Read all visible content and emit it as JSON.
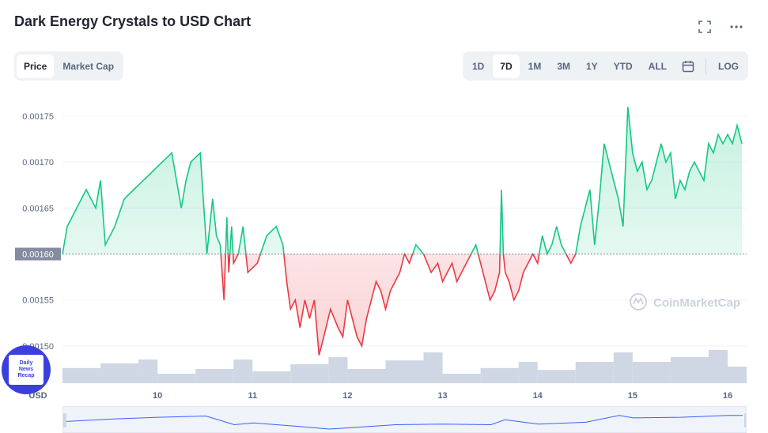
{
  "title": "Dark Energy Crystals to USD Chart",
  "icons": {
    "expand": "fullscreen-icon",
    "more": "more-horizontal-icon",
    "calendar": "calendar-icon"
  },
  "tabs_left": [
    {
      "label": "Price",
      "active": true
    },
    {
      "label": "Market Cap",
      "active": false
    }
  ],
  "ranges": [
    {
      "label": "1D",
      "active": false
    },
    {
      "label": "7D",
      "active": true
    },
    {
      "label": "1M",
      "active": false
    },
    {
      "label": "3M",
      "active": false
    },
    {
      "label": "1Y",
      "active": false
    },
    {
      "label": "YTD",
      "active": false
    },
    {
      "label": "ALL",
      "active": false
    }
  ],
  "log_label": "LOG",
  "watermark": "CoinMarketCap",
  "badge_text": [
    "Daily",
    "News",
    "Recap"
  ],
  "colors": {
    "up": "#16c784",
    "down": "#ea3943",
    "volume": "#cfd6e4",
    "nav_line": "#3861fb",
    "baseline_badge": "#858ca2"
  },
  "chart_data": {
    "type": "line",
    "title": "Dark Energy Crystals to USD Chart",
    "currency_label": "USD",
    "ylim": [
      0.001475,
      0.00178
    ],
    "yticks": [
      "0.00150",
      "0.00155",
      "0.00160",
      "0.00165",
      "0.00170",
      "0.00175"
    ],
    "baseline": {
      "value": 0.0016,
      "label": "0.00160"
    },
    "x_range": [
      9.0,
      16.2
    ],
    "xticks": [
      {
        "value": 10,
        "label": "10"
      },
      {
        "value": 11,
        "label": "11"
      },
      {
        "value": 12,
        "label": "12"
      },
      {
        "value": 13,
        "label": "13"
      },
      {
        "value": 14,
        "label": "14"
      },
      {
        "value": 15,
        "label": "15"
      },
      {
        "value": 16,
        "label": "16"
      }
    ],
    "series": [
      {
        "x": [
          9.0,
          9.05,
          9.15,
          9.25,
          9.35,
          9.4,
          9.45,
          9.5,
          9.55,
          9.65,
          9.75,
          9.85,
          9.95,
          10.05,
          10.15,
          10.25,
          10.3,
          10.35,
          10.45,
          10.52,
          10.58,
          10.62,
          10.66,
          10.7,
          10.73,
          10.75,
          10.78,
          10.8,
          10.85,
          10.9,
          10.95,
          11.05,
          11.15,
          11.25,
          11.32,
          11.36,
          11.4,
          11.45,
          11.5,
          11.55,
          11.6,
          11.65,
          11.7,
          11.75,
          11.82,
          11.9,
          11.95,
          12.0,
          12.05,
          12.1,
          12.15,
          12.2,
          12.25,
          12.3,
          12.35,
          12.4,
          12.45,
          12.5,
          12.55,
          12.6,
          12.65,
          12.72,
          12.8,
          12.88,
          12.95,
          13.0,
          13.05,
          13.1,
          13.15,
          13.2,
          13.25,
          13.3,
          13.35,
          13.4,
          13.45,
          13.5,
          13.55,
          13.6,
          13.62,
          13.64,
          13.66,
          13.7,
          13.75,
          13.8,
          13.85,
          13.9,
          13.95,
          14.0,
          14.05,
          14.1,
          14.15,
          14.2,
          14.25,
          14.3,
          14.35,
          14.4,
          14.45,
          14.5,
          14.55,
          14.6,
          14.65,
          14.7,
          14.75,
          14.8,
          14.85,
          14.9,
          14.95,
          15.0,
          15.05,
          15.1,
          15.15,
          15.2,
          15.25,
          15.3,
          15.35,
          15.4,
          15.45,
          15.5,
          15.55,
          15.6,
          15.65,
          15.7,
          15.75,
          15.8,
          15.85,
          15.9,
          15.95,
          16.0,
          16.05,
          16.1,
          16.15
        ],
        "y": [
          0.0016,
          0.00163,
          0.00165,
          0.00167,
          0.00165,
          0.00168,
          0.00161,
          0.00162,
          0.00163,
          0.00166,
          0.00167,
          0.00168,
          0.00169,
          0.0017,
          0.00171,
          0.00165,
          0.00168,
          0.0017,
          0.00171,
          0.0016,
          0.00166,
          0.00162,
          0.00161,
          0.00155,
          0.00164,
          0.00158,
          0.00163,
          0.00159,
          0.0016,
          0.00163,
          0.00158,
          0.00159,
          0.00162,
          0.00163,
          0.00161,
          0.00157,
          0.00154,
          0.00155,
          0.00152,
          0.00155,
          0.00153,
          0.00155,
          0.00149,
          0.00151,
          0.00154,
          0.00152,
          0.00151,
          0.00155,
          0.00153,
          0.00151,
          0.0015,
          0.00153,
          0.00155,
          0.00157,
          0.00156,
          0.00154,
          0.00156,
          0.00157,
          0.00158,
          0.0016,
          0.00159,
          0.00161,
          0.0016,
          0.00158,
          0.00159,
          0.00157,
          0.00158,
          0.00159,
          0.00157,
          0.00158,
          0.00159,
          0.0016,
          0.00161,
          0.00159,
          0.00157,
          0.00155,
          0.00156,
          0.00158,
          0.00167,
          0.0016,
          0.00158,
          0.00157,
          0.00155,
          0.00156,
          0.00158,
          0.00159,
          0.0016,
          0.00159,
          0.00162,
          0.0016,
          0.00161,
          0.00163,
          0.00161,
          0.0016,
          0.00159,
          0.0016,
          0.00163,
          0.00165,
          0.00167,
          0.00161,
          0.00166,
          0.00172,
          0.0017,
          0.00168,
          0.00166,
          0.00163,
          0.00176,
          0.00171,
          0.00169,
          0.0017,
          0.00167,
          0.00168,
          0.0017,
          0.00172,
          0.0017,
          0.00171,
          0.00166,
          0.00168,
          0.00167,
          0.00169,
          0.0017,
          0.00169,
          0.00168,
          0.00172,
          0.00171,
          0.00173,
          0.00172,
          0.00173,
          0.00172,
          0.00174,
          0.00172
        ]
      }
    ],
    "volume": {
      "x": [
        9.0,
        9.4,
        9.8,
        10.0,
        10.4,
        10.8,
        11.0,
        11.4,
        11.8,
        12.0,
        12.4,
        12.8,
        13.0,
        13.4,
        13.8,
        14.0,
        14.4,
        14.8,
        15.0,
        15.4,
        15.8,
        16.0
      ],
      "values": [
        0.32,
        0.42,
        0.5,
        0.2,
        0.3,
        0.5,
        0.25,
        0.4,
        0.55,
        0.3,
        0.48,
        0.65,
        0.2,
        0.32,
        0.45,
        0.28,
        0.45,
        0.65,
        0.45,
        0.55,
        0.7,
        0.35
      ]
    },
    "navigator": {
      "x": [
        9.0,
        9.5,
        10.0,
        10.5,
        10.8,
        11.0,
        11.5,
        11.8,
        12.0,
        12.5,
        13.0,
        13.5,
        13.65,
        14.0,
        14.5,
        14.85,
        15.0,
        15.5,
        16.0,
        16.15
      ],
      "y": [
        0.00162,
        0.00166,
        0.00169,
        0.00171,
        0.00157,
        0.0016,
        0.00154,
        0.0015,
        0.00152,
        0.00157,
        0.00158,
        0.00157,
        0.00165,
        0.00158,
        0.00161,
        0.00172,
        0.00168,
        0.00169,
        0.00172,
        0.00172
      ]
    }
  }
}
